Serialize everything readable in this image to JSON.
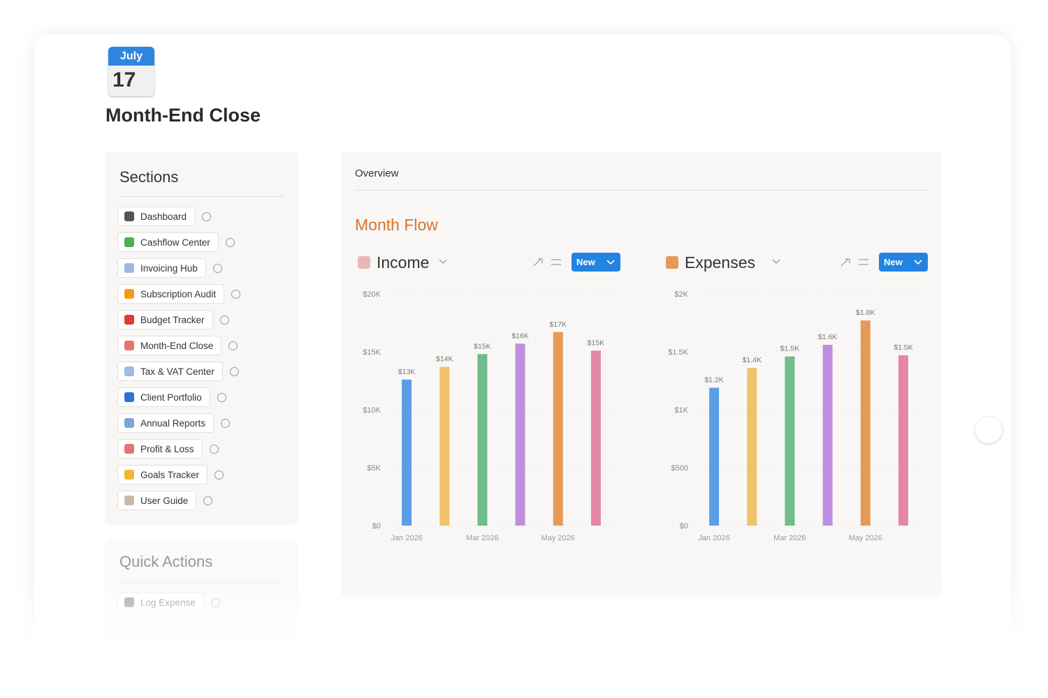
{
  "page": {
    "icon_month": "July",
    "icon_day": "17",
    "title": "Month-End Close"
  },
  "sections": {
    "title": "Sections",
    "items": [
      "Dashboard",
      "Cashflow Center",
      "Invoicing Hub",
      "Subscription Audit",
      "Budget Tracker",
      "Month-End Close",
      "Tax & VAT Center",
      "Client Portfolio",
      "Annual Reports",
      "Profit & Loss",
      "Goals Tracker",
      "User Guide"
    ]
  },
  "quick_actions": {
    "title": "Quick Actions",
    "items": [
      "Log Expense"
    ]
  },
  "overview": {
    "tab": "Overview",
    "heading": "Month Flow"
  },
  "chart_data": [
    {
      "type": "bar",
      "title": "Income",
      "button": "New",
      "categories": [
        "Jan 2026",
        null,
        "Mar 2026",
        null,
        "May 2026",
        null
      ],
      "values": [
        12600,
        13700,
        14800,
        15700,
        16700,
        15100
      ],
      "value_labels": [
        "$13K",
        "$14K",
        "$15K",
        "$16K",
        "$17K",
        "$15K"
      ],
      "colors": [
        "#5a9ee8",
        "#f0c36a",
        "#6fbd8a",
        "#c08ee0",
        "#e59a55",
        "#e486a8"
      ],
      "ylim": [
        0,
        20000
      ],
      "yticks": [
        {
          "value": 0,
          "label": "$0"
        },
        {
          "value": 5000,
          "label": "$5K"
        },
        {
          "value": 10000,
          "label": "$10K"
        },
        {
          "value": 15000,
          "label": "$15K"
        },
        {
          "value": 20000,
          "label": "$20K"
        }
      ],
      "grid": true
    },
    {
      "type": "bar",
      "title": "Expenses",
      "button": "New",
      "categories": [
        "Jan 2026",
        null,
        "Mar 2026",
        null,
        "May 2026",
        null
      ],
      "values": [
        1190,
        1360,
        1460,
        1560,
        1770,
        1470
      ],
      "value_labels": [
        "$1.2K",
        "$1.4K",
        "$1.5K",
        "$1.6K",
        "$1.8K",
        "$1.5K"
      ],
      "colors": [
        "#5a9ee8",
        "#f0c36a",
        "#6fbd8a",
        "#c08ee0",
        "#e59a55",
        "#e486a8"
      ],
      "ylim": [
        0,
        2000
      ],
      "yticks": [
        {
          "value": 0,
          "label": "$0"
        },
        {
          "value": 500,
          "label": "$500"
        },
        {
          "value": 1000,
          "label": "$1K"
        },
        {
          "value": 1500,
          "label": "$1.5K"
        },
        {
          "value": 2000,
          "label": "$2K"
        }
      ],
      "grid": true
    }
  ]
}
